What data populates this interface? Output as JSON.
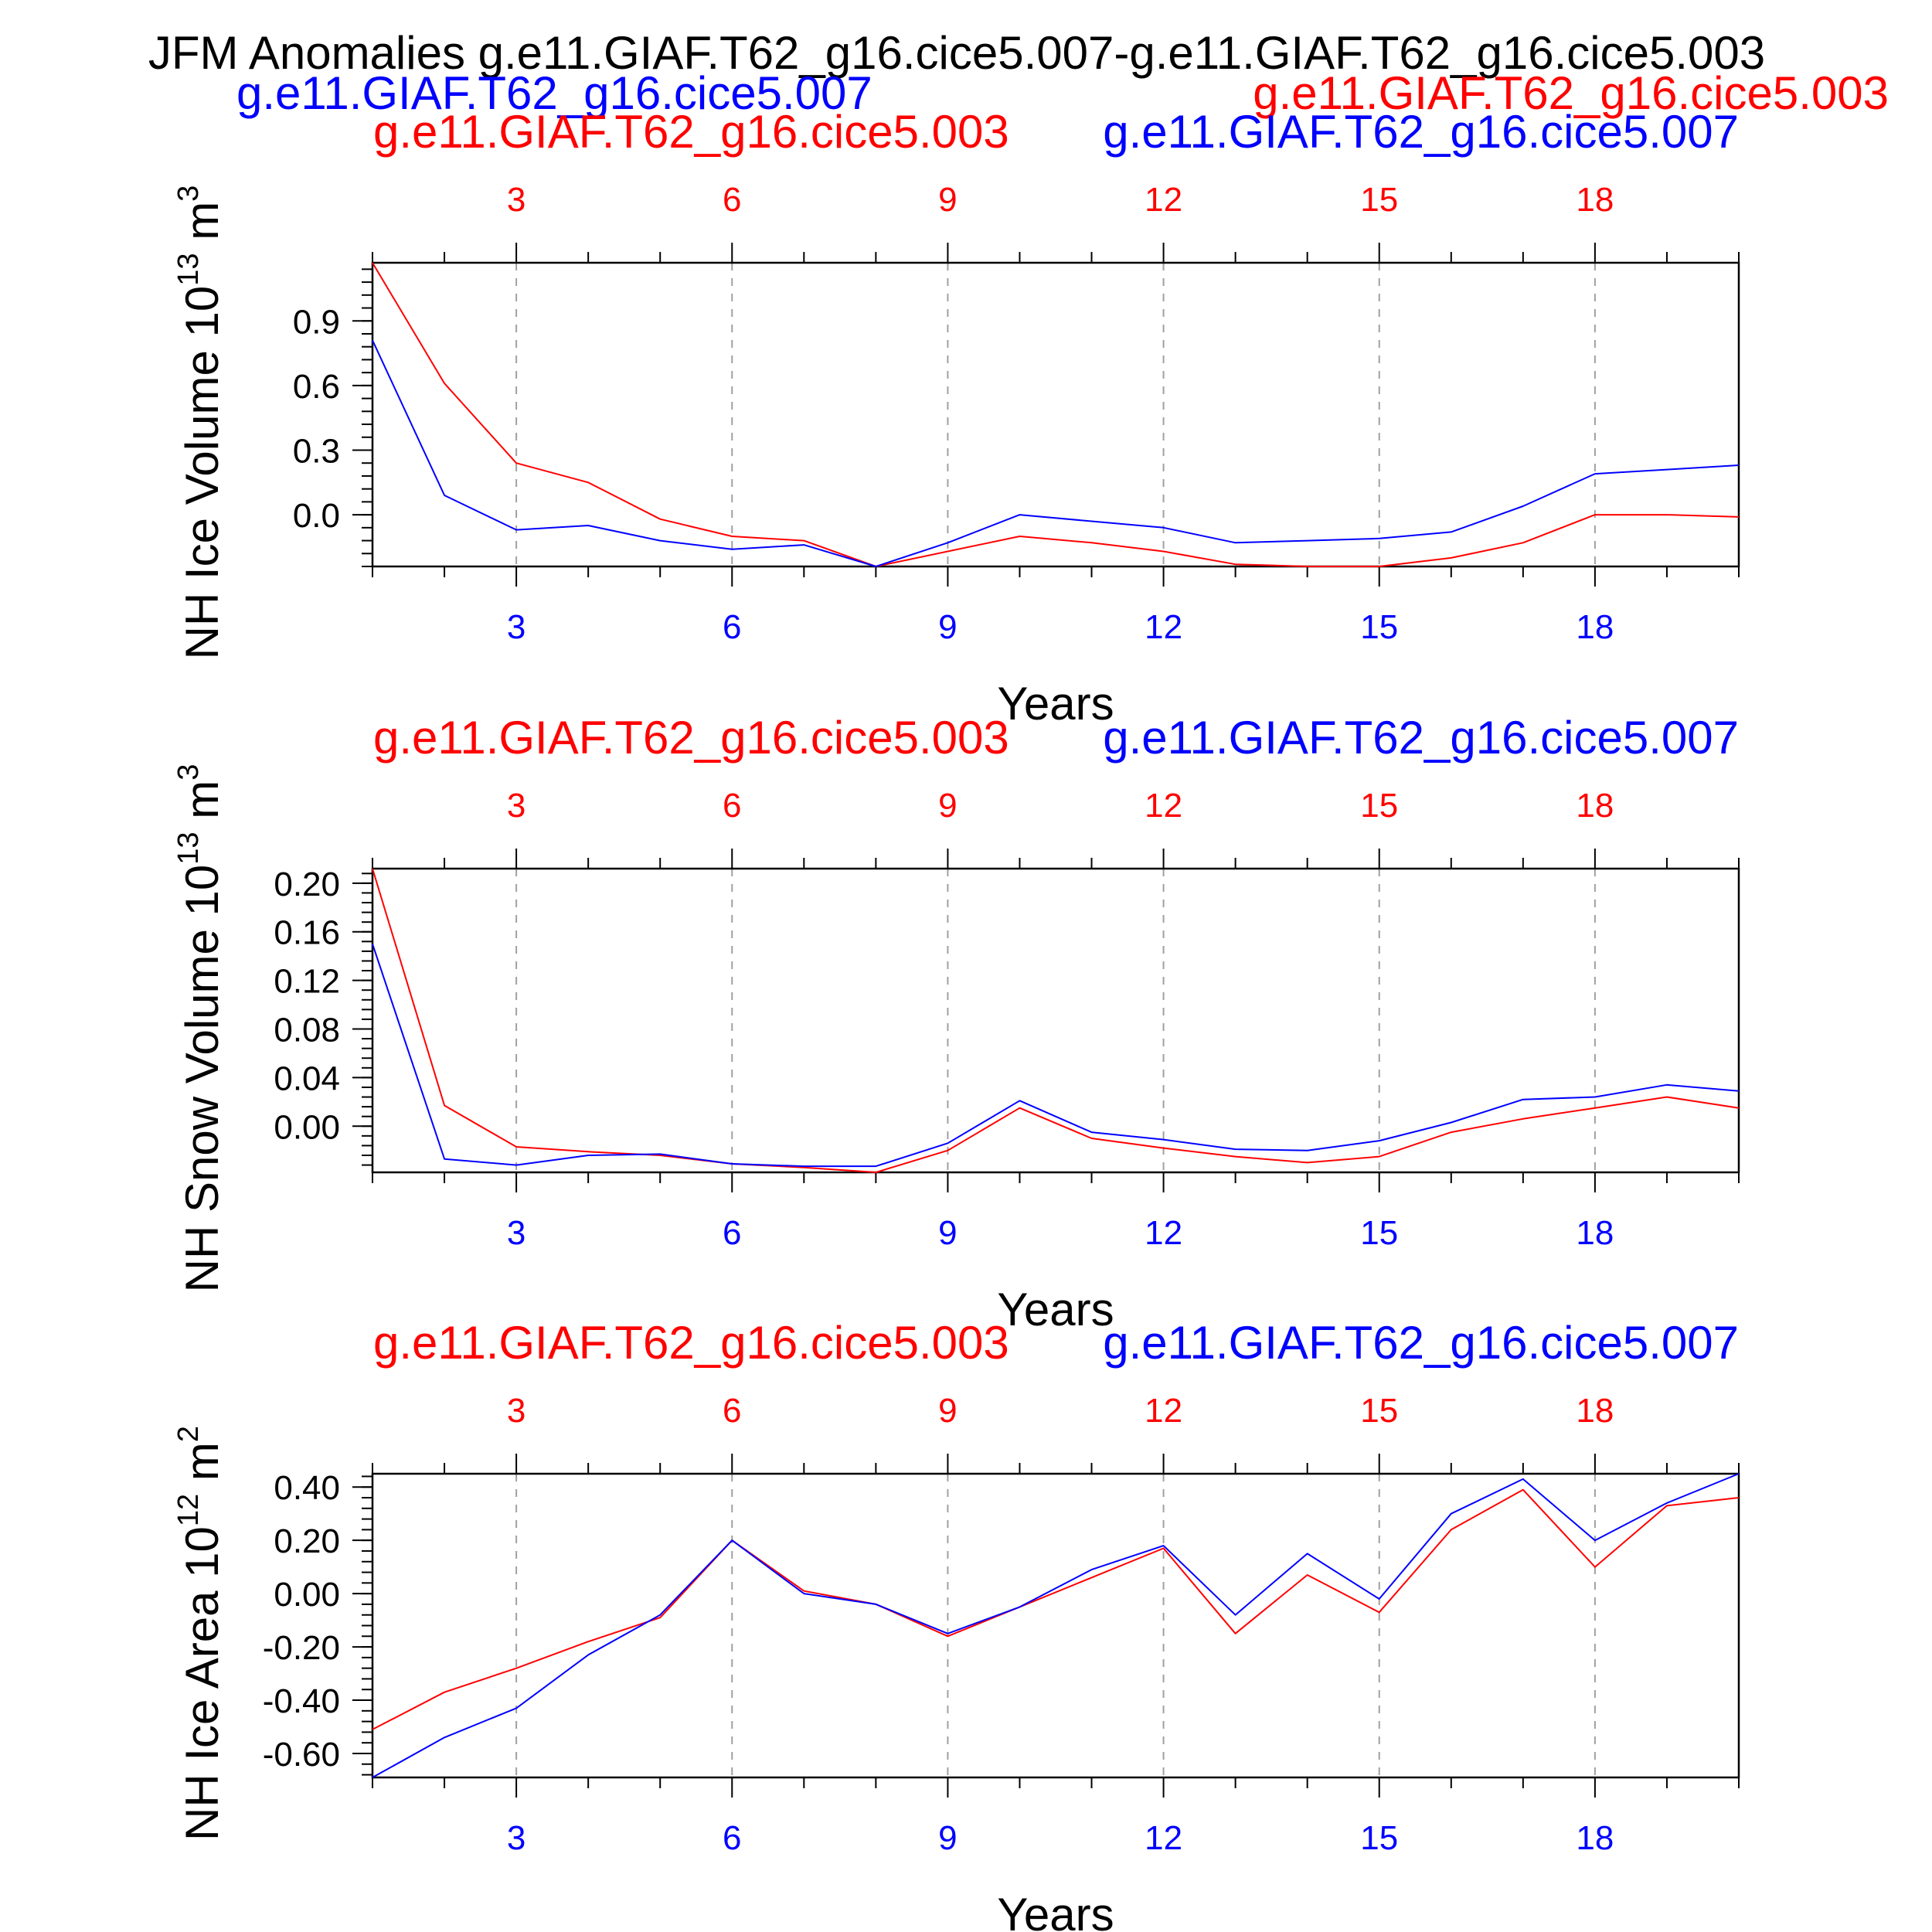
{
  "header": {
    "title": "JFM Anomalies g.e11.GIAF.T62_g16.cice5.007-g.e11.GIAF.T62_g16.cice5.003",
    "left_case": "g.e11.GIAF.T62_g16.cice5.007",
    "right_case": "g.e11.GIAF.T62_g16.cice5.003"
  },
  "colors": {
    "case_003": "#ff0000",
    "case_007": "#0000ff",
    "axis": "#000000",
    "grid": "#a0a0a0"
  },
  "chart_data": [
    {
      "type": "line",
      "label_top_left": "g.e11.GIAF.T62_g16.cice5.003",
      "label_top_right": "g.e11.GIAF.T62_g16.cice5.007",
      "ylabel": "NH Ice Volume 10",
      "ylabel_exp": "13",
      "ylabel_unit": "m",
      "ylabel_unit_exp": "3",
      "xlabel": "Years",
      "xlim": [
        1,
        20
      ],
      "ylim": [
        -0.24,
        1.17
      ],
      "xticks": [
        3,
        6,
        9,
        12,
        15,
        18
      ],
      "xtick_labels": [
        "3",
        "6",
        "9",
        "12",
        "15",
        "18"
      ],
      "yticks": [
        0.0,
        0.3,
        0.6,
        0.9
      ],
      "ytick_labels": [
        "0.0",
        "0.3",
        "0.6",
        "0.9"
      ],
      "yminor_step": 0.06,
      "grid": "vertical dashed",
      "x": [
        1,
        2,
        3,
        4,
        5,
        6,
        7,
        8,
        9,
        10,
        11,
        12,
        13,
        14,
        15,
        16,
        17,
        18,
        19,
        20
      ],
      "series": [
        {
          "name": "g.e11.GIAF.T62_g16.cice5.003",
          "color": "#ff0000",
          "values": [
            1.17,
            0.61,
            0.24,
            0.15,
            -0.02,
            -0.1,
            -0.12,
            -0.24,
            -0.17,
            -0.1,
            -0.13,
            -0.17,
            -0.23,
            -0.24,
            -0.24,
            -0.2,
            -0.13,
            0.0,
            0.0,
            -0.01
          ]
        },
        {
          "name": "g.e11.GIAF.T62_g16.cice5.007",
          "color": "#0000ff",
          "values": [
            0.81,
            0.09,
            -0.07,
            -0.05,
            -0.12,
            -0.16,
            -0.14,
            -0.24,
            -0.13,
            0.0,
            -0.03,
            -0.06,
            -0.13,
            -0.12,
            -0.11,
            -0.08,
            0.04,
            0.19,
            0.21,
            0.23
          ]
        }
      ]
    },
    {
      "type": "line",
      "label_top_left": "g.e11.GIAF.T62_g16.cice5.003",
      "label_top_right": "g.e11.GIAF.T62_g16.cice5.007",
      "ylabel": "NH Snow Volume 10",
      "ylabel_exp": "13",
      "ylabel_unit": "m",
      "ylabel_unit_exp": "3",
      "xlabel": "Years",
      "xlim": [
        1,
        20
      ],
      "ylim": [
        -0.038,
        0.212
      ],
      "xticks": [
        3,
        6,
        9,
        12,
        15,
        18
      ],
      "xtick_labels": [
        "3",
        "6",
        "9",
        "12",
        "15",
        "18"
      ],
      "yticks": [
        0.0,
        0.04,
        0.08,
        0.12,
        0.16,
        0.2
      ],
      "ytick_labels": [
        "0.00",
        "0.04",
        "0.08",
        "0.12",
        "0.16",
        "0.20"
      ],
      "yminor_step": 0.008,
      "grid": "vertical dashed",
      "x": [
        1,
        2,
        3,
        4,
        5,
        6,
        7,
        8,
        9,
        10,
        11,
        12,
        13,
        14,
        15,
        16,
        17,
        18,
        19,
        20
      ],
      "series": [
        {
          "name": "g.e11.GIAF.T62_g16.cice5.003",
          "color": "#ff0000",
          "values": [
            0.212,
            0.017,
            -0.017,
            -0.021,
            -0.024,
            -0.031,
            -0.034,
            -0.038,
            -0.02,
            0.015,
            -0.01,
            -0.018,
            -0.025,
            -0.03,
            -0.025,
            -0.005,
            0.006,
            0.015,
            0.024,
            0.015
          ]
        },
        {
          "name": "g.e11.GIAF.T62_g16.cice5.007",
          "color": "#0000ff",
          "values": [
            0.15,
            -0.027,
            -0.032,
            -0.024,
            -0.023,
            -0.031,
            -0.033,
            -0.033,
            -0.014,
            0.021,
            -0.005,
            -0.011,
            -0.019,
            -0.02,
            -0.012,
            0.003,
            0.022,
            0.024,
            0.034,
            0.029
          ]
        }
      ]
    },
    {
      "type": "line",
      "label_top_left": "g.e11.GIAF.T62_g16.cice5.003",
      "label_top_right": "g.e11.GIAF.T62_g16.cice5.007",
      "ylabel": "NH Ice Area 10",
      "ylabel_exp": "12",
      "ylabel_unit": "m",
      "ylabel_unit_exp": "2",
      "xlabel": "Years",
      "xlim": [
        1,
        20
      ],
      "ylim": [
        -0.69,
        0.45
      ],
      "xticks": [
        3,
        6,
        9,
        12,
        15,
        18
      ],
      "xtick_labels": [
        "3",
        "6",
        "9",
        "12",
        "15",
        "18"
      ],
      "yticks": [
        -0.6,
        -0.4,
        -0.2,
        0.0,
        0.2,
        0.4
      ],
      "ytick_labels": [
        "-0.60",
        "-0.40",
        "-0.20",
        "0.00",
        "0.20",
        "0.40"
      ],
      "yminor_step": 0.04,
      "grid": "vertical dashed",
      "x": [
        1,
        2,
        3,
        4,
        5,
        6,
        7,
        8,
        9,
        10,
        11,
        12,
        13,
        14,
        15,
        16,
        17,
        18,
        19,
        20
      ],
      "series": [
        {
          "name": "g.e11.GIAF.T62_g16.cice5.003",
          "color": "#ff0000",
          "values": [
            -0.51,
            -0.37,
            -0.28,
            -0.18,
            -0.09,
            0.2,
            0.01,
            -0.04,
            -0.16,
            -0.05,
            0.06,
            0.17,
            -0.15,
            0.07,
            -0.07,
            0.24,
            0.39,
            0.1,
            0.33,
            0.36
          ]
        },
        {
          "name": "g.e11.GIAF.T62_g16.cice5.007",
          "color": "#0000ff",
          "values": [
            -0.69,
            -0.54,
            -0.43,
            -0.23,
            -0.08,
            0.2,
            0.0,
            -0.04,
            -0.15,
            -0.05,
            0.09,
            0.18,
            -0.08,
            0.15,
            -0.02,
            0.3,
            0.43,
            0.2,
            0.34,
            0.45
          ]
        }
      ]
    }
  ]
}
